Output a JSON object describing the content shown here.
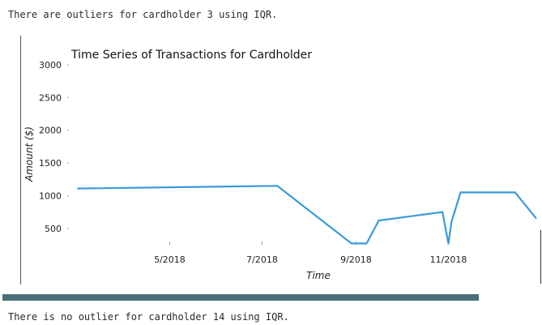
{
  "output": {
    "top_message": "There are outliers for cardholder 3 using IQR.",
    "bottom_message": "There is no outlier for cardholder 14 using IQR."
  },
  "chart_data": {
    "type": "line",
    "title": "Time Series of Transactions for Cardholder",
    "xlabel": "Time",
    "ylabel": "Amount ($)",
    "x": [
      "2018-03-01",
      "2018-07-11",
      "2018-08-29",
      "2018-09-08",
      "2018-09-16",
      "2018-10-28",
      "2018-11-01",
      "2018-11-03",
      "2018-11-09",
      "2018-11-10",
      "2018-12-15",
      "2018-12-29"
    ],
    "values": [
      1110,
      1150,
      270,
      270,
      620,
      750,
      270,
      600,
      1050,
      1050,
      1050,
      650
    ],
    "x_ticks": [
      "5/2018",
      "7/2018",
      "9/2018",
      "11/2018"
    ],
    "y_ticks": [
      500,
      1000,
      1500,
      2000,
      2500,
      3000
    ],
    "ylim": [
      250,
      3000
    ],
    "line_color": "#3a9ad9"
  }
}
